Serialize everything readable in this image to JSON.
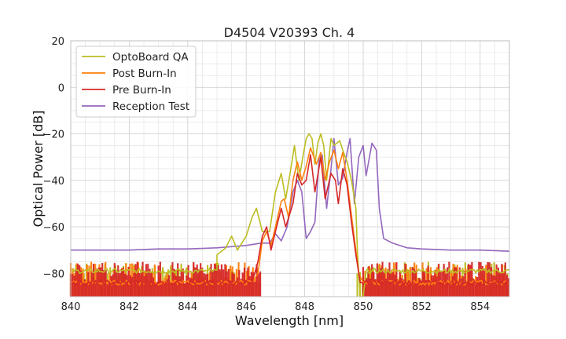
{
  "chart_data": {
    "type": "line",
    "title": "D4504 V20393 Ch. 4",
    "xlabel": "Wavelength [nm]",
    "ylabel": "Optical Power [dB]",
    "xlim": [
      840,
      855
    ],
    "ylim": [
      -90,
      20
    ],
    "xticks": [
      840,
      842,
      844,
      846,
      848,
      850,
      852,
      854
    ],
    "yticks": [
      20,
      0,
      -20,
      -40,
      -60,
      -80
    ],
    "minor_grid_step": {
      "x": 0.5,
      "y": 5
    },
    "grid": true,
    "legend_position": "top-left",
    "noise_floor": {
      "min": -90,
      "max": -75
    },
    "series": [
      {
        "name": "OptoBoard QA",
        "color": "#bcbd22",
        "floor": -79,
        "points": [
          [
            845.0,
            -72
          ],
          [
            845.3,
            -69
          ],
          [
            845.5,
            -64
          ],
          [
            845.7,
            -70
          ],
          [
            846.0,
            -64
          ],
          [
            846.2,
            -56
          ],
          [
            846.35,
            -52
          ],
          [
            846.55,
            -62
          ],
          [
            846.8,
            -62
          ],
          [
            847.0,
            -45
          ],
          [
            847.2,
            -37
          ],
          [
            847.35,
            -48
          ],
          [
            847.5,
            -37
          ],
          [
            847.65,
            -25
          ],
          [
            847.8,
            -40
          ],
          [
            847.95,
            -29
          ],
          [
            848.05,
            -22
          ],
          [
            848.15,
            -20
          ],
          [
            848.25,
            -22
          ],
          [
            848.35,
            -33
          ],
          [
            848.45,
            -24
          ],
          [
            848.55,
            -20
          ],
          [
            848.65,
            -25
          ],
          [
            848.75,
            -40
          ],
          [
            848.9,
            -22
          ],
          [
            849.0,
            -25
          ],
          [
            849.2,
            -23
          ],
          [
            849.3,
            -27
          ],
          [
            849.45,
            -32
          ],
          [
            849.6,
            -40
          ],
          [
            849.75,
            -52
          ],
          [
            849.8,
            -70
          ],
          [
            849.9,
            -90
          ],
          [
            850.0,
            -90
          ],
          [
            850.1,
            -79
          ]
        ]
      },
      {
        "name": "Post Burn-In",
        "color": "#ff7f0e",
        "floor": -84,
        "points": [
          [
            846.2,
            -84
          ],
          [
            846.4,
            -80
          ],
          [
            846.55,
            -66
          ],
          [
            846.7,
            -62
          ],
          [
            846.85,
            -68
          ],
          [
            847.0,
            -60
          ],
          [
            847.2,
            -49
          ],
          [
            847.3,
            -48
          ],
          [
            847.45,
            -56
          ],
          [
            847.6,
            -40
          ],
          [
            847.75,
            -32
          ],
          [
            847.9,
            -40
          ],
          [
            848.05,
            -34
          ],
          [
            848.2,
            -26
          ],
          [
            848.4,
            -33
          ],
          [
            848.55,
            -28
          ],
          [
            848.7,
            -40
          ],
          [
            848.85,
            -32
          ],
          [
            849.0,
            -27
          ],
          [
            849.15,
            -35
          ],
          [
            849.3,
            -28
          ],
          [
            849.45,
            -40
          ],
          [
            849.6,
            -55
          ],
          [
            849.75,
            -70
          ],
          [
            849.85,
            -80
          ],
          [
            850.0,
            -84
          ]
        ]
      },
      {
        "name": "Pre Burn-In",
        "color": "#d62728",
        "floor": -84,
        "points": [
          [
            846.2,
            -84
          ],
          [
            846.4,
            -75
          ],
          [
            846.55,
            -64
          ],
          [
            846.7,
            -60
          ],
          [
            846.85,
            -70
          ],
          [
            847.0,
            -62
          ],
          [
            847.2,
            -52
          ],
          [
            847.35,
            -60
          ],
          [
            847.6,
            -50
          ],
          [
            847.75,
            -37
          ],
          [
            847.9,
            -42
          ],
          [
            848.05,
            -40
          ],
          [
            848.2,
            -29
          ],
          [
            848.35,
            -45
          ],
          [
            848.55,
            -30
          ],
          [
            848.7,
            -48
          ],
          [
            848.9,
            -37
          ],
          [
            849.05,
            -40
          ],
          [
            849.15,
            -50
          ],
          [
            849.3,
            -35
          ],
          [
            849.45,
            -42
          ],
          [
            849.6,
            -58
          ],
          [
            849.75,
            -72
          ],
          [
            849.9,
            -84
          ]
        ]
      },
      {
        "name": "Reception Test",
        "color": "#9467bd",
        "floor": -70,
        "points": [
          [
            840.0,
            -70
          ],
          [
            841.0,
            -70
          ],
          [
            842.0,
            -70
          ],
          [
            843.0,
            -69.5
          ],
          [
            844.0,
            -69.5
          ],
          [
            845.0,
            -69
          ],
          [
            846.0,
            -68
          ],
          [
            846.5,
            -67
          ],
          [
            846.8,
            -67
          ],
          [
            847.0,
            -63
          ],
          [
            847.2,
            -66
          ],
          [
            847.4,
            -60
          ],
          [
            847.6,
            -45
          ],
          [
            847.75,
            -40
          ],
          [
            847.9,
            -45
          ],
          [
            848.05,
            -65
          ],
          [
            848.2,
            -62
          ],
          [
            848.35,
            -58
          ],
          [
            848.5,
            -30
          ],
          [
            848.6,
            -29
          ],
          [
            848.75,
            -52
          ],
          [
            848.9,
            -35
          ],
          [
            849.0,
            -22
          ],
          [
            849.15,
            -42
          ],
          [
            849.3,
            -39
          ],
          [
            849.45,
            -28
          ],
          [
            849.55,
            -22
          ],
          [
            849.7,
            -50
          ],
          [
            849.85,
            -30
          ],
          [
            850.0,
            -25
          ],
          [
            850.1,
            -38
          ],
          [
            850.3,
            -24
          ],
          [
            850.45,
            -27
          ],
          [
            850.55,
            -52
          ],
          [
            850.7,
            -65
          ],
          [
            851.0,
            -67
          ],
          [
            851.5,
            -69
          ],
          [
            852.0,
            -69.5
          ],
          [
            853.0,
            -70
          ],
          [
            854.0,
            -70
          ],
          [
            855.0,
            -70.5
          ]
        ]
      }
    ]
  }
}
